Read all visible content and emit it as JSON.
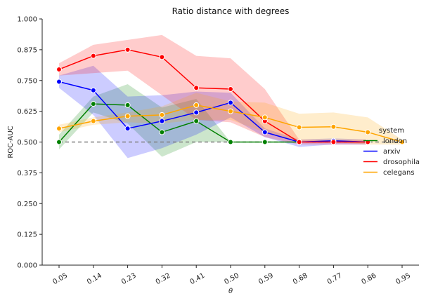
{
  "chart_data": {
    "type": "line",
    "title": "Ratio distance with degrees",
    "xlabel": "θ",
    "ylabel": "ROC-AUC",
    "x": [
      "0.05",
      "0.14",
      "0.23",
      "0.32",
      "0.41",
      "0.50",
      "0.59",
      "0.68",
      "0.77",
      "0.86",
      "0.95"
    ],
    "ylim": [
      0.0,
      1.0
    ],
    "yticks": [
      "0.000",
      "0.125",
      "0.250",
      "0.375",
      "0.500",
      "0.625",
      "0.750",
      "0.875",
      "1.000"
    ],
    "reference_line": {
      "y": 0.5,
      "style": "dashed",
      "color": "#808080"
    },
    "legend": {
      "title": "system",
      "placement": "right"
    },
    "series": [
      {
        "name": "london",
        "color": "#008000",
        "values": [
          0.5,
          0.655,
          0.65,
          0.54,
          0.585,
          0.5,
          0.5,
          0.5,
          null,
          null,
          null
        ],
        "band_low": [
          0.47,
          0.62,
          0.575,
          0.44,
          0.5,
          0.5,
          0.5,
          0.5,
          null,
          null,
          null
        ],
        "band_high": [
          0.53,
          0.685,
          0.735,
          0.64,
          0.675,
          0.5,
          0.5,
          0.5,
          null,
          null,
          null
        ]
      },
      {
        "name": "arxiv",
        "color": "#0000ff",
        "values": [
          0.745,
          0.71,
          0.555,
          0.585,
          0.62,
          0.66,
          0.54,
          0.5,
          0.505,
          0.5,
          null
        ],
        "band_low": [
          0.72,
          0.61,
          0.435,
          0.475,
          0.53,
          0.6,
          0.52,
          0.48,
          0.49,
          0.49,
          null
        ],
        "band_high": [
          0.77,
          0.81,
          0.685,
          0.69,
          0.705,
          0.7,
          0.555,
          0.51,
          0.515,
          0.51,
          null
        ]
      },
      {
        "name": "drosophila",
        "color": "#ff0000",
        "values": [
          0.795,
          0.85,
          0.875,
          0.845,
          0.72,
          0.715,
          0.585,
          0.5,
          0.5,
          0.5,
          null
        ],
        "band_low": [
          0.77,
          0.78,
          0.79,
          0.69,
          0.59,
          0.58,
          0.52,
          0.49,
          0.49,
          0.49,
          null
        ],
        "band_high": [
          0.82,
          0.895,
          0.915,
          0.935,
          0.85,
          0.84,
          0.715,
          0.51,
          0.51,
          0.51,
          null
        ]
      },
      {
        "name": "celegans",
        "color": "#ffa500",
        "values": [
          0.555,
          0.585,
          0.605,
          0.61,
          0.65,
          0.625,
          0.6,
          0.56,
          0.562,
          0.54,
          0.5
        ],
        "band_low": [
          0.54,
          0.57,
          0.58,
          0.575,
          0.59,
          0.59,
          0.54,
          0.5,
          0.5,
          0.49,
          0.49
        ],
        "band_high": [
          0.57,
          0.6,
          0.62,
          0.645,
          0.7,
          0.665,
          0.66,
          0.615,
          0.62,
          0.6,
          0.51
        ]
      }
    ]
  }
}
